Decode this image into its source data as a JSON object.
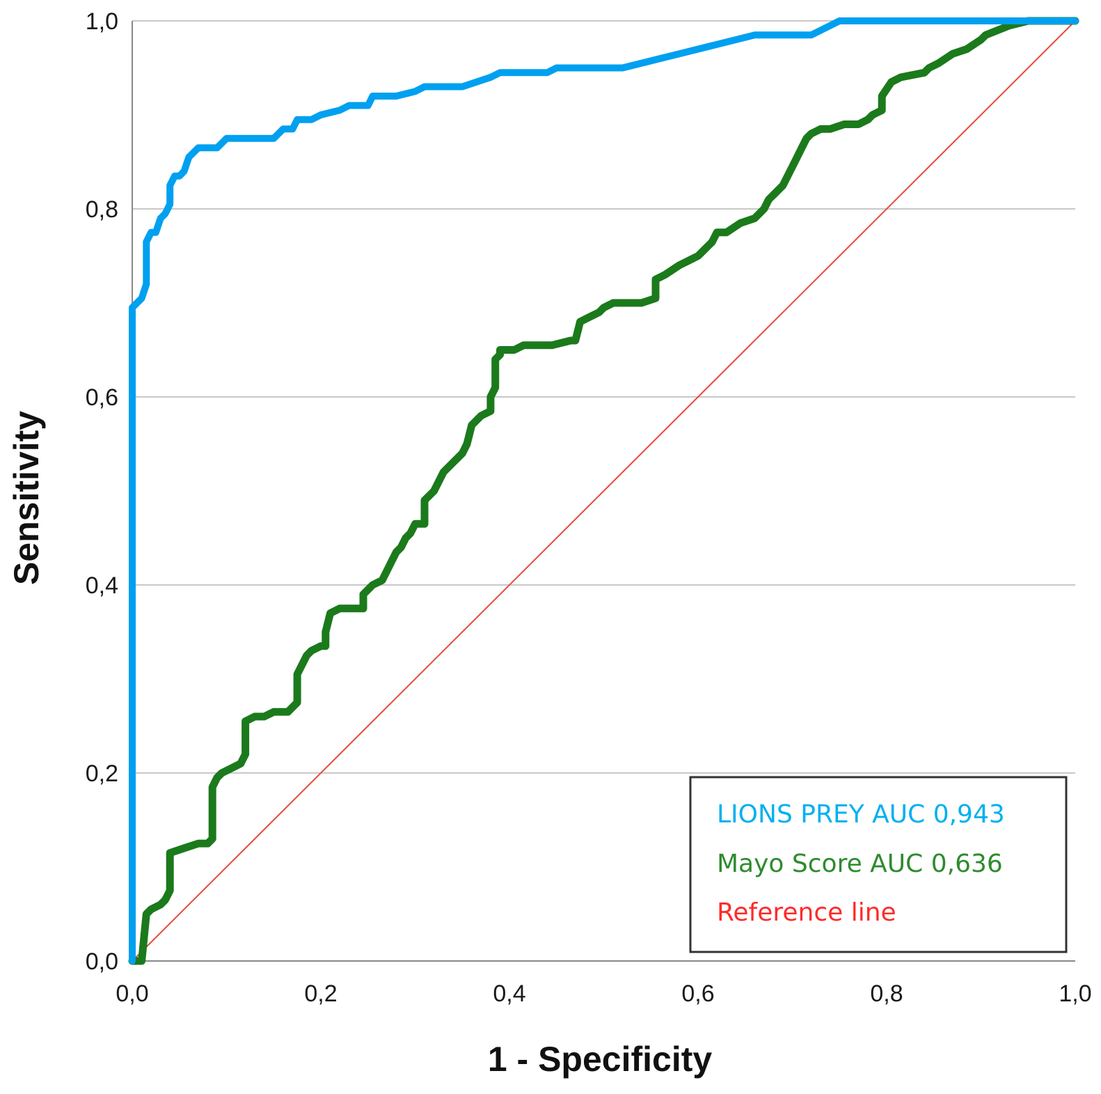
{
  "chart_data": {
    "type": "line",
    "title": "",
    "xlabel": "1 - Specificity",
    "ylabel": "Sensitivity",
    "xlim": [
      0,
      1
    ],
    "ylim": [
      0,
      1
    ],
    "x_ticks": [
      "0,0",
      "0,2",
      "0,4",
      "0,6",
      "0,8",
      "1,0"
    ],
    "y_ticks": [
      "0,0",
      "0,2",
      "0,4",
      "0,6",
      "0,8",
      "1,0"
    ],
    "grid": "horizontal",
    "legend_position": "bottom-right",
    "series": [
      {
        "name": "LIONS PREY AUC 0,943",
        "color": "#00a0f0",
        "x": [
          0,
          0,
          0.01,
          0.015,
          0.015,
          0.02,
          0.025,
          0.03,
          0.035,
          0.04,
          0.04,
          0.045,
          0.05,
          0.055,
          0.06,
          0.065,
          0.07,
          0.075,
          0.09,
          0.1,
          0.11,
          0.15,
          0.16,
          0.17,
          0.175,
          0.19,
          0.2,
          0.22,
          0.23,
          0.25,
          0.255,
          0.28,
          0.3,
          0.31,
          0.35,
          0.38,
          0.39,
          0.44,
          0.45,
          0.46,
          0.52,
          0.56,
          0.58,
          0.62,
          0.66,
          0.67,
          0.72,
          0.74,
          0.75,
          0.76,
          1.0
        ],
        "y": [
          0,
          0.695,
          0.705,
          0.72,
          0.765,
          0.775,
          0.775,
          0.79,
          0.795,
          0.805,
          0.825,
          0.835,
          0.835,
          0.84,
          0.855,
          0.86,
          0.865,
          0.865,
          0.865,
          0.875,
          0.875,
          0.875,
          0.885,
          0.885,
          0.895,
          0.895,
          0.9,
          0.905,
          0.91,
          0.91,
          0.92,
          0.92,
          0.925,
          0.93,
          0.93,
          0.94,
          0.945,
          0.945,
          0.95,
          0.95,
          0.95,
          0.96,
          0.965,
          0.975,
          0.985,
          0.985,
          0.985,
          0.995,
          1.0,
          1.0,
          1.0
        ]
      },
      {
        "name": "Mayo Score AUC 0,636",
        "color": "#1b7a1b",
        "x": [
          0,
          0.01,
          0.015,
          0.02,
          0.03,
          0.035,
          0.04,
          0.04,
          0.055,
          0.07,
          0.08,
          0.085,
          0.085,
          0.09,
          0.095,
          0.105,
          0.115,
          0.12,
          0.12,
          0.13,
          0.135,
          0.14,
          0.15,
          0.165,
          0.175,
          0.175,
          0.18,
          0.185,
          0.19,
          0.2,
          0.205,
          0.205,
          0.21,
          0.22,
          0.235,
          0.245,
          0.245,
          0.255,
          0.265,
          0.27,
          0.275,
          0.28,
          0.285,
          0.29,
          0.295,
          0.3,
          0.31,
          0.31,
          0.32,
          0.325,
          0.33,
          0.34,
          0.35,
          0.355,
          0.36,
          0.37,
          0.38,
          0.38,
          0.385,
          0.385,
          0.39,
          0.39,
          0.405,
          0.415,
          0.445,
          0.465,
          0.47,
          0.475,
          0.485,
          0.495,
          0.5,
          0.51,
          0.54,
          0.555,
          0.555,
          0.565,
          0.58,
          0.59,
          0.6,
          0.605,
          0.615,
          0.62,
          0.63,
          0.645,
          0.66,
          0.67,
          0.675,
          0.68,
          0.69,
          0.695,
          0.705,
          0.71,
          0.715,
          0.72,
          0.73,
          0.74,
          0.755,
          0.77,
          0.78,
          0.785,
          0.795,
          0.795,
          0.805,
          0.815,
          0.84,
          0.845,
          0.855,
          0.87,
          0.885,
          0.9,
          0.905,
          0.93,
          0.95,
          1.0
        ],
        "y": [
          0,
          0,
          0.05,
          0.055,
          0.06,
          0.065,
          0.075,
          0.115,
          0.12,
          0.125,
          0.125,
          0.13,
          0.185,
          0.195,
          0.2,
          0.205,
          0.21,
          0.22,
          0.255,
          0.26,
          0.26,
          0.26,
          0.265,
          0.265,
          0.275,
          0.305,
          0.315,
          0.325,
          0.33,
          0.335,
          0.335,
          0.35,
          0.37,
          0.375,
          0.375,
          0.375,
          0.39,
          0.4,
          0.405,
          0.415,
          0.425,
          0.435,
          0.44,
          0.45,
          0.455,
          0.465,
          0.465,
          0.49,
          0.5,
          0.51,
          0.52,
          0.53,
          0.54,
          0.55,
          0.57,
          0.58,
          0.585,
          0.6,
          0.61,
          0.64,
          0.645,
          0.65,
          0.65,
          0.655,
          0.655,
          0.66,
          0.66,
          0.68,
          0.685,
          0.69,
          0.695,
          0.7,
          0.7,
          0.705,
          0.725,
          0.73,
          0.74,
          0.745,
          0.75,
          0.755,
          0.765,
          0.775,
          0.775,
          0.785,
          0.79,
          0.8,
          0.81,
          0.815,
          0.825,
          0.835,
          0.855,
          0.865,
          0.875,
          0.88,
          0.885,
          0.885,
          0.89,
          0.89,
          0.895,
          0.9,
          0.905,
          0.92,
          0.935,
          0.94,
          0.945,
          0.95,
          0.955,
          0.965,
          0.97,
          0.98,
          0.985,
          0.995,
          1.0,
          1.0
        ]
      },
      {
        "name": "Reference line",
        "color": "#e8483c",
        "x": [
          0,
          1
        ],
        "y": [
          0,
          1
        ]
      }
    ],
    "legend_colors": {
      "lions_prey": "#00b0f0",
      "mayo": "#2e8b2e",
      "reference": "#ff2a2a"
    }
  }
}
